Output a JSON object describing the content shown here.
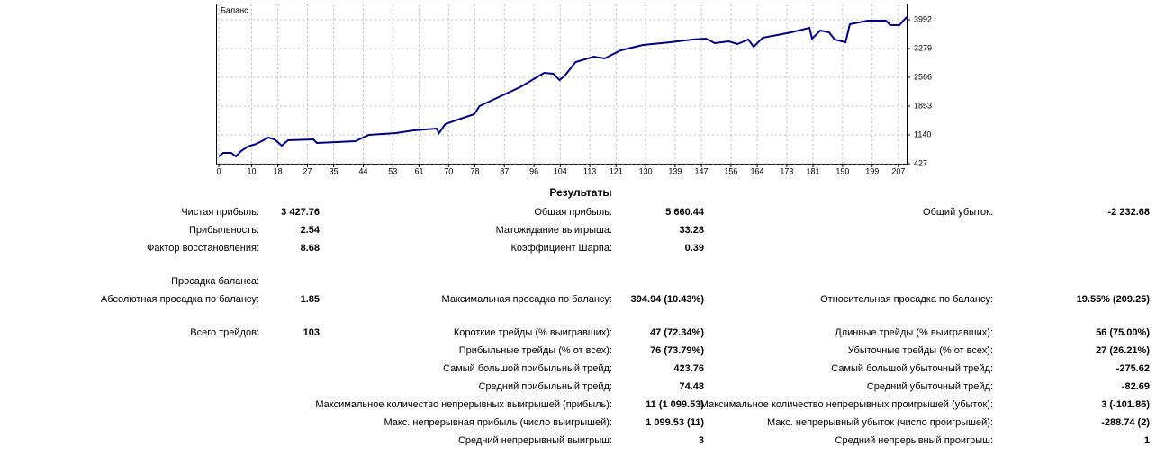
{
  "chart_data": {
    "type": "line",
    "title": "Баланс",
    "x": [
      0,
      1.4,
      3.8,
      5.2,
      6.8,
      8.8,
      11.5,
      15.1,
      17.0,
      19.2,
      21.1,
      28.8,
      29.9,
      41.6,
      45.7,
      53.9,
      59.4,
      66.3,
      67.1,
      69.0,
      74.5,
      77.8,
      79.4,
      83.5,
      88.2,
      91.7,
      95.0,
      99.1,
      101.9,
      103.8,
      105.4,
      108.7,
      114.2,
      117.5,
      122.4,
      129.2,
      137.5,
      144.3,
      148.4,
      151.1,
      155.3,
      158.0,
      161.3,
      162.9,
      165.7,
      174.4,
      179.9,
      180.7,
      183.2,
      185.9,
      187.6,
      190.9,
      192.2,
      197.7,
      203.2,
      204.5,
      207.3,
      209.5
    ],
    "series": [
      {
        "name": "Баланс",
        "color": "#000080",
        "values": [
          605,
          694,
          694,
          605,
          739,
          850,
          917,
          1073,
          1029,
          873,
          1006,
          1029,
          939,
          984,
          1140,
          1185,
          1251,
          1296,
          1185,
          1407,
          1563,
          1652,
          1853,
          2009,
          2187,
          2321,
          2477,
          2677,
          2655,
          2499,
          2610,
          2945,
          3078,
          3034,
          3234,
          3368,
          3435,
          3502,
          3524,
          3413,
          3457,
          3390,
          3502,
          3323,
          3546,
          3680,
          3791,
          3524,
          3724,
          3680,
          3502,
          3435,
          3880,
          3970,
          3970,
          3858,
          3858,
          4059
        ]
      }
    ],
    "xlim": [
      0,
      209.5
    ],
    "xticks": [
      0,
      10,
      18,
      27,
      35,
      44,
      53,
      61,
      70,
      78,
      87,
      96,
      104,
      113,
      121,
      130,
      139,
      147,
      156,
      164,
      173,
      181,
      190,
      199,
      207
    ],
    "ylim": [
      427,
      4371
    ],
    "yticks": [
      427,
      1140,
      1853,
      2566,
      3279,
      3992
    ],
    "grid": true
  },
  "results": {
    "title": "Результаты",
    "groups": [
      [
        [
          {
            "label": "Чистая прибыль:",
            "value": "3 427.76"
          },
          {
            "label": "Общая прибыль:",
            "value": "5 660.44"
          },
          {
            "label": "Общий убыток:",
            "value": "-2 232.68"
          }
        ],
        [
          {
            "label": "Прибыльность:",
            "value": "2.54"
          },
          {
            "label": "Матожидание выигрыша:",
            "value": "33.28"
          },
          null
        ],
        [
          {
            "label": "Фактор восстановления:",
            "value": "8.68"
          },
          {
            "label": "Коэффициент Шарпа:",
            "value": "0.39"
          },
          null
        ]
      ],
      [
        [
          {
            "label": "Просадка баланса:"
          },
          null,
          null
        ],
        [
          {
            "label": "Абсолютная просадка по балансу:",
            "value": "1.85"
          },
          {
            "label": "Максимальная просадка по балансу:",
            "value": "394.94 (10.43%)"
          },
          {
            "label": "Относительная просадка по балансу:",
            "value": "19.55% (209.25)"
          }
        ]
      ],
      [
        [
          {
            "label": "Всего трейдов:",
            "value": "103"
          },
          {
            "label": "Короткие трейды (% выигравших):",
            "value": "47 (72.34%)"
          },
          {
            "label": "Длинные трейды (% выигравших):",
            "value": "56 (75.00%)"
          }
        ],
        [
          null,
          {
            "label": "Прибыльные трейды (% от всех):",
            "value": "76 (73.79%)"
          },
          {
            "label": "Убыточные трейды (% от всех):",
            "value": "27 (26.21%)"
          }
        ],
        [
          null,
          {
            "label": "Самый большой прибыльный трейд:",
            "value": "423.76"
          },
          {
            "label": "Самый большой убыточный трейд:",
            "value": "-275.62"
          }
        ],
        [
          null,
          {
            "label": "Средний прибыльный трейд:",
            "value": "74.48"
          },
          {
            "label": "Средний убыточный трейд:",
            "value": "-82.69"
          }
        ],
        [
          null,
          {
            "label": "Максимальное количество непрерывных выигрышей (прибыль):",
            "value": "11 (1 099.53)"
          },
          {
            "label": "Максимальное количество непрерывных проигрышей (убыток):",
            "value": "3 (-101.86)"
          }
        ],
        [
          null,
          {
            "label": "Макс. непрерывная прибыль (число выигрышей):",
            "value": "1 099.53 (11)"
          },
          {
            "label": "Макс. непрерывный убыток (число проигрышей):",
            "value": "-288.74 (2)"
          }
        ],
        [
          null,
          {
            "label": "Средний непрерывный выигрыш:",
            "value": "3"
          },
          {
            "label": "Средний непрерывный проигрыш:",
            "value": "1"
          }
        ]
      ]
    ]
  }
}
